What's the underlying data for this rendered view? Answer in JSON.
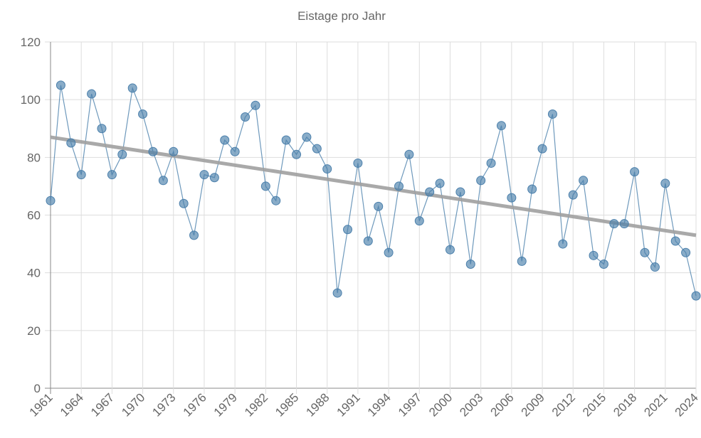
{
  "chart_data": {
    "type": "line",
    "title": "Eistage pro Jahr",
    "x": [
      1961,
      1962,
      1963,
      1964,
      1965,
      1966,
      1967,
      1968,
      1969,
      1970,
      1971,
      1972,
      1973,
      1974,
      1975,
      1976,
      1977,
      1978,
      1979,
      1980,
      1981,
      1982,
      1983,
      1984,
      1985,
      1986,
      1987,
      1988,
      1989,
      1990,
      1991,
      1992,
      1993,
      1994,
      1995,
      1996,
      1997,
      1998,
      1999,
      2000,
      2001,
      2002,
      2003,
      2004,
      2005,
      2006,
      2007,
      2008,
      2009,
      2010,
      2011,
      2012,
      2013,
      2014,
      2015,
      2016,
      2017,
      2018,
      2019,
      2020,
      2021,
      2022,
      2023,
      2024
    ],
    "series": [
      {
        "color": "#4a7fab",
        "values": [
          65,
          105,
          85,
          74,
          102,
          90,
          74,
          81,
          104,
          95,
          82,
          72,
          82,
          64,
          53,
          74,
          73,
          86,
          82,
          94,
          98,
          70,
          65,
          86,
          81,
          87,
          83,
          76,
          33,
          55,
          78,
          51,
          63,
          47,
          70,
          81,
          58,
          68,
          71,
          48,
          68,
          43,
          72,
          78,
          91,
          66,
          44,
          69,
          83,
          95,
          50,
          67,
          72,
          46,
          43,
          57,
          57,
          75,
          47,
          42,
          71,
          51,
          47,
          32
        ]
      }
    ],
    "trend": {
      "x": [
        1961,
        2024
      ],
      "values": [
        87,
        53
      ],
      "color": "#a0a0a0"
    },
    "xlim": [
      1961,
      2024
    ],
    "xticks": [
      1961,
      1964,
      1967,
      1970,
      1973,
      1976,
      1979,
      1982,
      1985,
      1988,
      1991,
      1994,
      1997,
      2000,
      2003,
      2006,
      2009,
      2012,
      2015,
      2018,
      2021,
      2024
    ],
    "ylim": [
      0,
      120
    ],
    "yticks": [
      0,
      20,
      40,
      60,
      80,
      100,
      120
    ],
    "grid": true
  }
}
